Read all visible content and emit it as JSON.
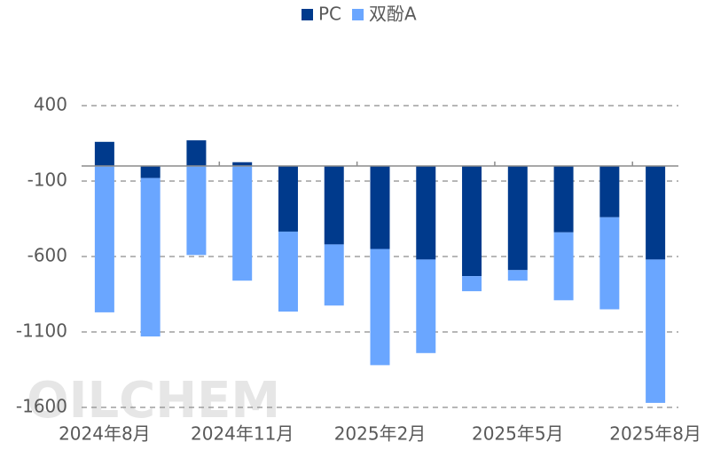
{
  "chart_data": {
    "type": "bar",
    "stacked": true,
    "categories": [
      "2024年8月",
      null,
      null,
      "2024年11月",
      null,
      null,
      "2025年2月",
      null,
      null,
      "2025年5月",
      null,
      null,
      "2025年8月"
    ],
    "series": [
      {
        "name": "PC",
        "color": "#003a8c",
        "values": [
          160,
          -80,
          170,
          25,
          -435,
          -520,
          -550,
          -620,
          -730,
          -690,
          -440,
          -340,
          -620
        ]
      },
      {
        "name": "双酚A",
        "color": "#6aa6ff",
        "values": [
          -970,
          -1050,
          -590,
          -760,
          -530,
          -405,
          -770,
          -620,
          -100,
          -70,
          -450,
          -610,
          -950
        ]
      }
    ],
    "ylim": [
      -1600,
      400
    ],
    "yticks": [
      400,
      -100,
      -600,
      -1100,
      -1600
    ],
    "grid": true,
    "legend": "top",
    "watermark": "OILCHEM"
  }
}
